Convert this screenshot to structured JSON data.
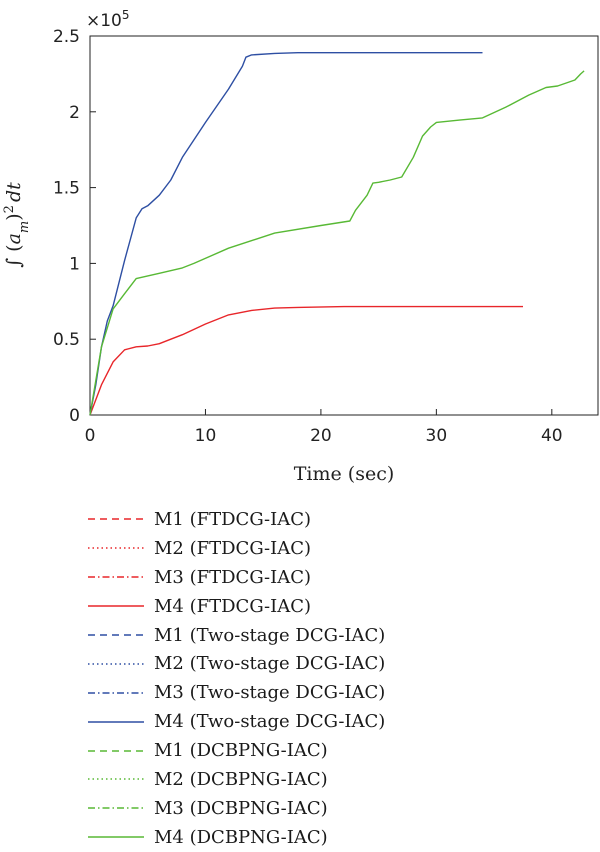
{
  "chart_data": {
    "type": "line",
    "xlabel": "Time (sec)",
    "ylabel": "∫ (a_m)^2 dt",
    "multiplier_label": "×10^5",
    "xlim": [
      0,
      44
    ],
    "ylim": [
      0,
      2.5
    ],
    "x_ticks": [
      "0",
      "10",
      "20",
      "30",
      "40"
    ],
    "y_ticks": [
      "0",
      "0.5",
      "1",
      "1.5",
      "2",
      "2.5"
    ],
    "legend_placement": "below",
    "series": [
      {
        "name": "M1 (FTDCG-IAC)",
        "color": "#e8262a",
        "dash": "dashed",
        "points": []
      },
      {
        "name": "M2 (FTDCG-IAC)",
        "color": "#e8262a",
        "dash": "dotted",
        "points": []
      },
      {
        "name": "M3 (FTDCG-IAC)",
        "color": "#e8262a",
        "dash": "dashdot",
        "points": []
      },
      {
        "name": "M4 (FTDCG-IAC)",
        "color": "#e8262a",
        "dash": "solid",
        "points": [
          [
            0,
            0
          ],
          [
            0.5,
            0.1
          ],
          [
            1,
            0.2
          ],
          [
            2,
            0.35
          ],
          [
            3,
            0.43
          ],
          [
            4,
            0.45
          ],
          [
            5,
            0.455
          ],
          [
            6,
            0.47
          ],
          [
            7,
            0.5
          ],
          [
            8,
            0.53
          ],
          [
            10,
            0.6
          ],
          [
            12,
            0.66
          ],
          [
            14,
            0.69
          ],
          [
            16,
            0.705
          ],
          [
            18,
            0.71
          ],
          [
            22,
            0.715
          ],
          [
            30,
            0.715
          ],
          [
            37.5,
            0.715
          ]
        ]
      },
      {
        "name": "M1 (Two-stage DCG-IAC)",
        "color": "#2e4fa3",
        "dash": "dashed",
        "points": []
      },
      {
        "name": "M2 (Two-stage DCG-IAC)",
        "color": "#2e4fa3",
        "dash": "dotted",
        "points": []
      },
      {
        "name": "M3 (Two-stage DCG-IAC)",
        "color": "#2e4fa3",
        "dash": "dashdot",
        "points": []
      },
      {
        "name": "M4 (Two-stage DCG-IAC)",
        "color": "#2e4fa3",
        "dash": "solid",
        "points": [
          [
            0,
            0
          ],
          [
            0.5,
            0.2
          ],
          [
            1,
            0.45
          ],
          [
            1.5,
            0.62
          ],
          [
            2,
            0.72
          ],
          [
            3,
            1.02
          ],
          [
            4,
            1.3
          ],
          [
            4.5,
            1.36
          ],
          [
            5,
            1.38
          ],
          [
            6,
            1.45
          ],
          [
            7,
            1.55
          ],
          [
            8,
            1.7
          ],
          [
            10,
            1.93
          ],
          [
            12,
            2.15
          ],
          [
            13.2,
            2.3
          ],
          [
            13.5,
            2.36
          ],
          [
            14,
            2.375
          ],
          [
            16,
            2.385
          ],
          [
            18,
            2.39
          ],
          [
            25,
            2.39
          ],
          [
            34,
            2.39
          ]
        ]
      },
      {
        "name": "M1 (DCBPNG-IAC)",
        "color": "#58b935",
        "dash": "dashed",
        "points": []
      },
      {
        "name": "M2 (DCBPNG-IAC)",
        "color": "#58b935",
        "dash": "dotted",
        "points": []
      },
      {
        "name": "M3 (DCBPNG-IAC)",
        "color": "#58b935",
        "dash": "dashdot",
        "points": []
      },
      {
        "name": "M4 (DCBPNG-IAC)",
        "color": "#58b935",
        "dash": "solid",
        "points": [
          [
            0,
            0
          ],
          [
            1,
            0.45
          ],
          [
            2,
            0.7
          ],
          [
            3,
            0.8
          ],
          [
            4,
            0.9
          ],
          [
            6,
            0.935
          ],
          [
            8,
            0.97
          ],
          [
            9,
            1.0
          ],
          [
            12,
            1.1
          ],
          [
            16,
            1.2
          ],
          [
            20,
            1.25
          ],
          [
            22.5,
            1.28
          ],
          [
            23,
            1.35
          ],
          [
            24,
            1.45
          ],
          [
            24.5,
            1.53
          ],
          [
            25,
            1.535
          ],
          [
            26,
            1.55
          ],
          [
            27,
            1.57
          ],
          [
            28,
            1.7
          ],
          [
            28.8,
            1.84
          ],
          [
            29.5,
            1.9
          ],
          [
            30,
            1.93
          ],
          [
            32,
            1.945
          ],
          [
            34,
            1.96
          ],
          [
            36,
            2.03
          ],
          [
            38,
            2.11
          ],
          [
            39.5,
            2.16
          ],
          [
            40.5,
            2.17
          ],
          [
            42,
            2.21
          ],
          [
            42.5,
            2.25
          ],
          [
            42.8,
            2.27
          ]
        ]
      }
    ]
  }
}
